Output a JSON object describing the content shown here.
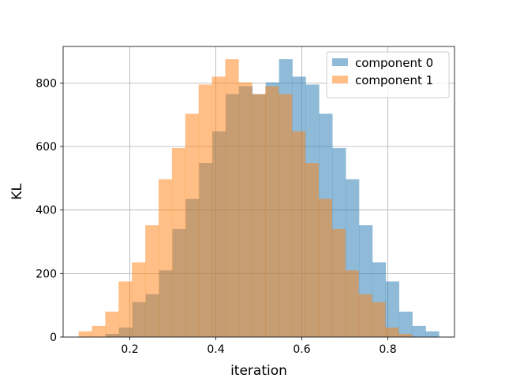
{
  "chart_data": {
    "type": "bar",
    "subtype": "overlapping histogram",
    "title": "",
    "xlabel": "iteration",
    "ylabel": "KL",
    "xlim": [
      0.045,
      0.955
    ],
    "ylim": [
      0,
      915
    ],
    "xticks": [
      "0.2",
      "0.4",
      "0.6",
      "0.8"
    ],
    "xtick_values": [
      0.2,
      0.4,
      0.6,
      0.8
    ],
    "yticks": [
      "0",
      "200",
      "400",
      "600",
      "800"
    ],
    "ytick_values": [
      0,
      200,
      400,
      600,
      800
    ],
    "grid": true,
    "legend_position": "top-right",
    "series": [
      {
        "name": "component 0",
        "color": "#1f77b4",
        "opacity": 0.5,
        "bins": [
          {
            "x0": 0.144,
            "x1": 0.175,
            "value": 10
          },
          {
            "x0": 0.175,
            "x1": 0.206,
            "value": 30
          },
          {
            "x0": 0.206,
            "x1": 0.237,
            "value": 110
          },
          {
            "x0": 0.237,
            "x1": 0.268,
            "value": 135
          },
          {
            "x0": 0.268,
            "x1": 0.299,
            "value": 210
          },
          {
            "x0": 0.299,
            "x1": 0.33,
            "value": 340
          },
          {
            "x0": 0.33,
            "x1": 0.361,
            "value": 435
          },
          {
            "x0": 0.361,
            "x1": 0.392,
            "value": 548
          },
          {
            "x0": 0.392,
            "x1": 0.423,
            "value": 648
          },
          {
            "x0": 0.423,
            "x1": 0.454,
            "value": 765
          },
          {
            "x0": 0.454,
            "x1": 0.485,
            "value": 790
          },
          {
            "x0": 0.485,
            "x1": 0.516,
            "value": 765
          },
          {
            "x0": 0.516,
            "x1": 0.547,
            "value": 802
          },
          {
            "x0": 0.547,
            "x1": 0.578,
            "value": 875
          },
          {
            "x0": 0.578,
            "x1": 0.609,
            "value": 820
          },
          {
            "x0": 0.609,
            "x1": 0.64,
            "value": 795
          },
          {
            "x0": 0.64,
            "x1": 0.671,
            "value": 703
          },
          {
            "x0": 0.671,
            "x1": 0.702,
            "value": 595
          },
          {
            "x0": 0.702,
            "x1": 0.733,
            "value": 497
          },
          {
            "x0": 0.733,
            "x1": 0.764,
            "value": 352
          },
          {
            "x0": 0.764,
            "x1": 0.795,
            "value": 235
          },
          {
            "x0": 0.795,
            "x1": 0.826,
            "value": 175
          },
          {
            "x0": 0.826,
            "x1": 0.857,
            "value": 80
          },
          {
            "x0": 0.857,
            "x1": 0.888,
            "value": 35
          },
          {
            "x0": 0.888,
            "x1": 0.919,
            "value": 18
          }
        ]
      },
      {
        "name": "component 1",
        "color": "#ff7f0e",
        "opacity": 0.5,
        "bins": [
          {
            "x0": 0.081,
            "x1": 0.112,
            "value": 18
          },
          {
            "x0": 0.112,
            "x1": 0.143,
            "value": 35
          },
          {
            "x0": 0.143,
            "x1": 0.174,
            "value": 80
          },
          {
            "x0": 0.174,
            "x1": 0.205,
            "value": 175
          },
          {
            "x0": 0.205,
            "x1": 0.236,
            "value": 235
          },
          {
            "x0": 0.236,
            "x1": 0.267,
            "value": 352
          },
          {
            "x0": 0.267,
            "x1": 0.298,
            "value": 497
          },
          {
            "x0": 0.298,
            "x1": 0.329,
            "value": 595
          },
          {
            "x0": 0.329,
            "x1": 0.36,
            "value": 703
          },
          {
            "x0": 0.36,
            "x1": 0.391,
            "value": 795
          },
          {
            "x0": 0.391,
            "x1": 0.422,
            "value": 820
          },
          {
            "x0": 0.422,
            "x1": 0.453,
            "value": 875
          },
          {
            "x0": 0.453,
            "x1": 0.484,
            "value": 802
          },
          {
            "x0": 0.484,
            "x1": 0.515,
            "value": 765
          },
          {
            "x0": 0.515,
            "x1": 0.546,
            "value": 790
          },
          {
            "x0": 0.546,
            "x1": 0.577,
            "value": 765
          },
          {
            "x0": 0.577,
            "x1": 0.608,
            "value": 648
          },
          {
            "x0": 0.608,
            "x1": 0.639,
            "value": 548
          },
          {
            "x0": 0.639,
            "x1": 0.67,
            "value": 435
          },
          {
            "x0": 0.67,
            "x1": 0.701,
            "value": 340
          },
          {
            "x0": 0.701,
            "x1": 0.732,
            "value": 210
          },
          {
            "x0": 0.732,
            "x1": 0.763,
            "value": 135
          },
          {
            "x0": 0.763,
            "x1": 0.794,
            "value": 110
          },
          {
            "x0": 0.794,
            "x1": 0.825,
            "value": 30
          },
          {
            "x0": 0.825,
            "x1": 0.856,
            "value": 10
          }
        ]
      }
    ]
  }
}
